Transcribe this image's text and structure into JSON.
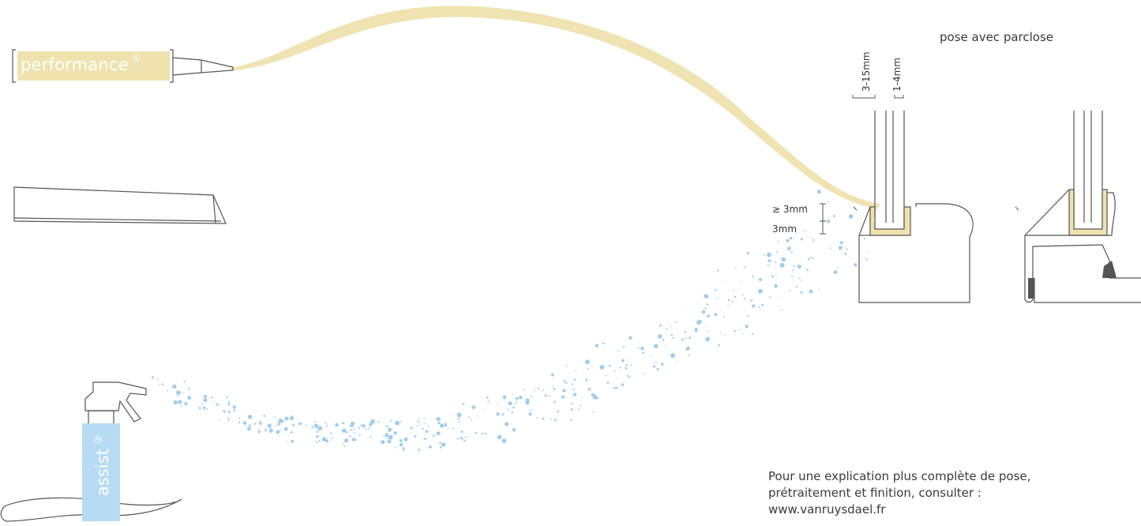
{
  "title": "pose avec parclose",
  "products": {
    "performance": {
      "label": "performance",
      "symbol": "①",
      "color": "#efe2ae"
    },
    "assist": {
      "label": "assist",
      "symbol": "②",
      "color": "#b7dbf3"
    }
  },
  "dimensions": {
    "gap_width": "3-15mm",
    "glass_width": "1-4mm",
    "min_height": "≥ 3mm",
    "base_height": "3mm"
  },
  "footer": {
    "line1": "Pour une explication plus complète de pose,",
    "line2": "prétraitement et finition, consulter :",
    "line3": "www.vanruysdael.fr"
  },
  "colors": {
    "sealant": "#efe2ae",
    "spray": "#9fcdee",
    "line": "#555555",
    "rubber": "#555555"
  }
}
